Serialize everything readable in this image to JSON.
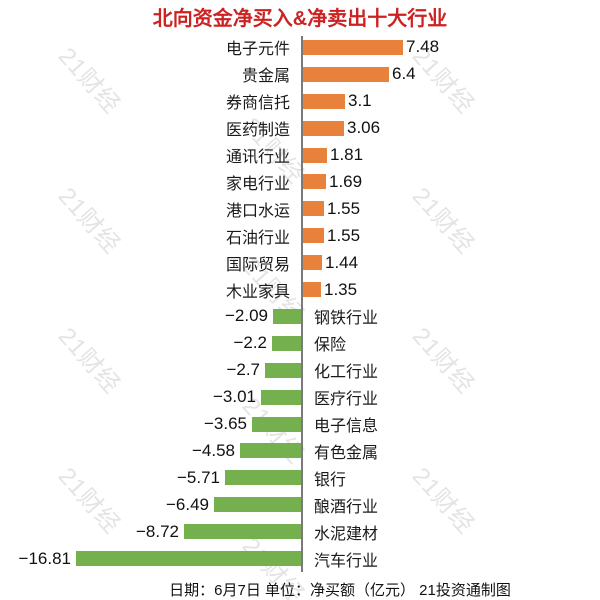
{
  "title": {
    "text": "北向资金净买入&净卖出十大行业",
    "color": "#cc2222"
  },
  "watermark": {
    "text": "21财经",
    "color": "#e4e4e4"
  },
  "footer": {
    "text": "日期：6月7日 单位：净买额（亿元） 21投资通制图"
  },
  "chart_data": {
    "type": "bar",
    "orientation": "horizontal",
    "title": "北向资金净买入&净卖出十大行业",
    "date": "6月7日",
    "unit": "净买额（亿元）",
    "source": "21投资通制图",
    "positive_color": "#e8813b",
    "negative_color": "#74b04e",
    "axis_color": "#7a7a7a",
    "xlim": [
      -17,
      8.5
    ],
    "legend": null,
    "grid": false,
    "categories": [
      "电子元件",
      "贵金属",
      "券商信托",
      "医药制造",
      "通讯行业",
      "家电行业",
      "港口水运",
      "石油行业",
      "国际贸易",
      "木业家具",
      "钢铁行业",
      "保险",
      "化工行业",
      "医疗行业",
      "电子信息",
      "有色金属",
      "银行",
      "酿酒行业",
      "水泥建材",
      "汽车行业"
    ],
    "values": [
      7.48,
      6.4,
      3.1,
      3.06,
      1.81,
      1.69,
      1.55,
      1.55,
      1.44,
      1.35,
      -2.09,
      -2.2,
      -2.7,
      -3.01,
      -3.65,
      -4.58,
      -5.71,
      -6.49,
      -8.72,
      -16.81
    ],
    "value_labels": [
      "7.48",
      "6.4",
      "3.1",
      "3.06",
      "1.81",
      "1.69",
      "1.55",
      "1.55",
      "1.44",
      "1.35",
      "−2.09",
      "−2.2",
      "−2.7",
      "−3.01",
      "−3.65",
      "−4.58",
      "−5.71",
      "−6.49",
      "−8.72",
      "−16.81"
    ]
  }
}
